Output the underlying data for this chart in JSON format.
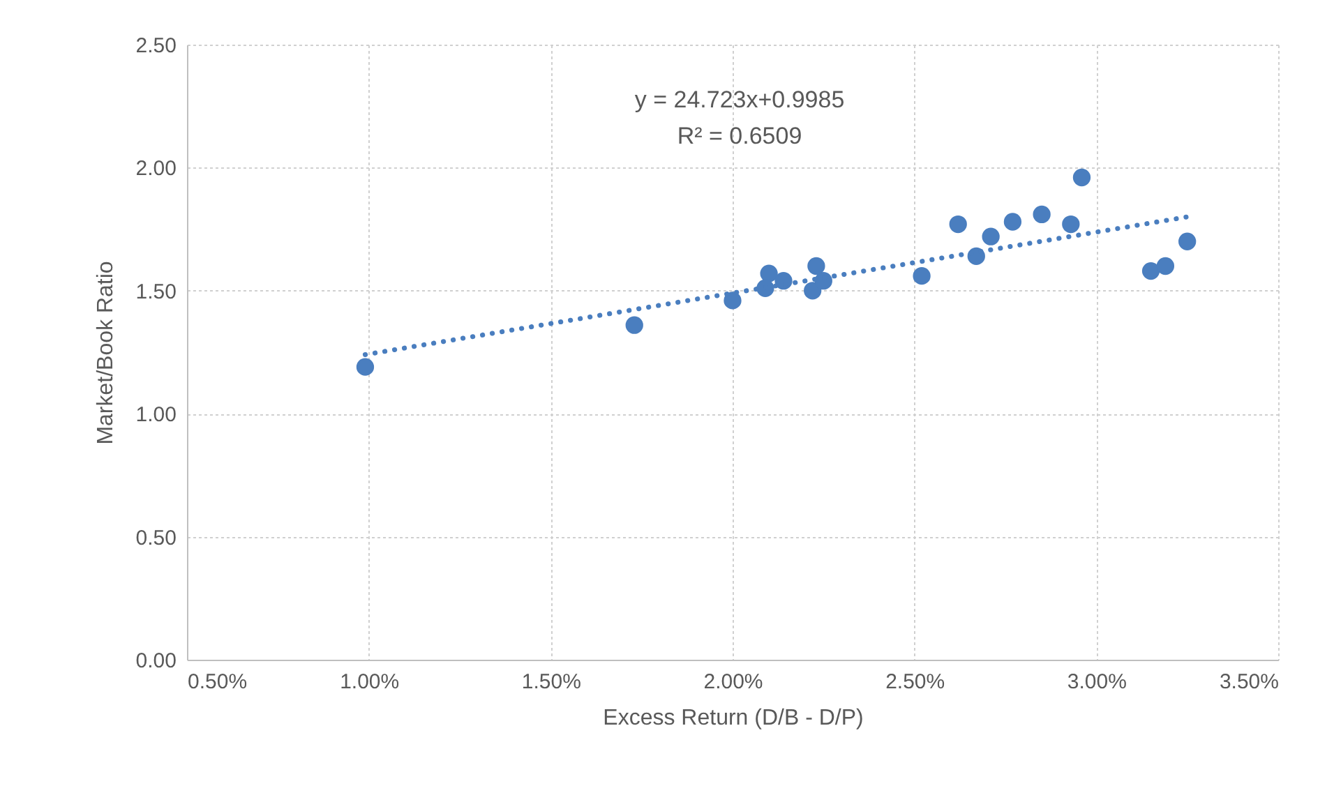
{
  "chart_data": {
    "type": "scatter",
    "xlabel": "Excess Return (D/B - D/P)",
    "ylabel": "Market/Book Ratio",
    "annotations": [
      "y = 24.723x+0.9985",
      "R² = 0.6509"
    ],
    "xlim": [
      0.5,
      3.5
    ],
    "ylim": [
      0,
      2.5
    ],
    "xticks": [
      {
        "value": 0.5,
        "label": "0.50%"
      },
      {
        "value": 1,
        "label": "1.00%"
      },
      {
        "value": 1.5,
        "label": "1.50%"
      },
      {
        "value": 2,
        "label": "2.00%"
      },
      {
        "value": 2.5,
        "label": "2.50%"
      },
      {
        "value": 3,
        "label": "3.00%"
      },
      {
        "value": 3.5,
        "label": "3.50%"
      }
    ],
    "yticks": [
      {
        "value": 0,
        "label": "0.00"
      },
      {
        "value": 0.5,
        "label": "0.50"
      },
      {
        "value": 1,
        "label": "1.00"
      },
      {
        "value": 1.5,
        "label": "1.50"
      },
      {
        "value": 2,
        "label": "2.00"
      },
      {
        "value": 2.5,
        "label": "2.50"
      }
    ],
    "grid": true,
    "series": [
      {
        "color": "#4a7ebf",
        "marker": "circle",
        "x": [
          0.99,
          1.73,
          2.0,
          2.1,
          2.09,
          2.14,
          2.23,
          2.22,
          2.25,
          2.52,
          2.62,
          2.67,
          2.71,
          2.77,
          2.85,
          2.93,
          2.96,
          3.15,
          3.19,
          3.25
        ],
        "values": [
          1.19,
          1.36,
          1.46,
          1.57,
          1.51,
          1.54,
          1.6,
          1.5,
          1.54,
          1.56,
          1.77,
          1.64,
          1.72,
          1.78,
          1.81,
          1.77,
          1.96,
          1.58,
          1.6,
          1.7
        ]
      },
      {
        "type": "line",
        "color": "#4a7ebf",
        "line_style": "dotted",
        "marker": "none",
        "x": [
          0.99,
          3.25
        ],
        "values": [
          1.24,
          1.8
        ]
      }
    ]
  }
}
